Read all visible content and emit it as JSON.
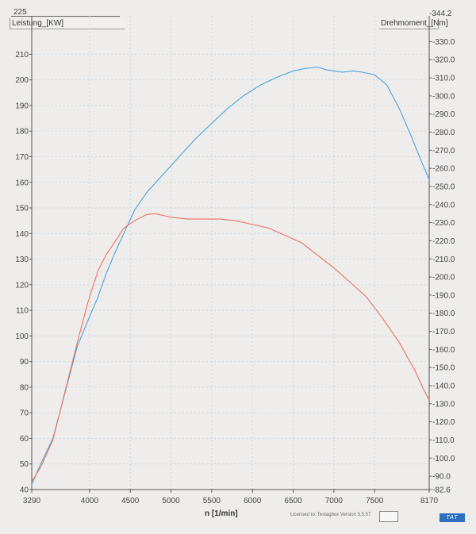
{
  "chart_data": {
    "type": "line",
    "xlabel": "n  [1/min]",
    "y_left_label": "Leistung_[KW]",
    "y_right_label": "Drehmoment_[Nm]",
    "x_range": [
      3290,
      8170
    ],
    "y_left_range": [
      40,
      225
    ],
    "y_right_range": [
      82.6,
      344.2
    ],
    "x_ticks": [
      "3290",
      "4000",
      "4500",
      "5000",
      "5500",
      "6000",
      "6500",
      "7000",
      "7500",
      "8170"
    ],
    "y_left_ticks": [
      "40",
      "50",
      "60",
      "70",
      "80",
      "90",
      "100",
      "110",
      "120",
      "130",
      "140",
      "150",
      "160",
      "170",
      "180",
      "190",
      "200",
      "210",
      "225"
    ],
    "y_right_ticks": [
      "-82.6",
      "-90.0",
      "-100.0",
      "-110.0",
      "-120.0",
      "-130.0",
      "-140.0",
      "-150.0",
      "-160.0",
      "-170.0",
      "-180.0",
      "-190.0",
      "-200.0",
      "-210.0",
      "-220.0",
      "-230.0",
      "-240.0",
      "-250.0",
      "-260.0",
      "-270.0",
      "-280.0",
      "-290.0",
      "-300.0",
      "-310.0",
      "-320.0",
      "-330.0",
      "-344.2"
    ],
    "series": [
      {
        "name": "Leistung_[KW]",
        "axis": "left",
        "color": "#4aa3df",
        "points": [
          [
            3290,
            42
          ],
          [
            3400,
            50
          ],
          [
            3550,
            60
          ],
          [
            3700,
            78
          ],
          [
            3850,
            96
          ],
          [
            3980,
            106
          ],
          [
            4100,
            115
          ],
          [
            4200,
            124
          ],
          [
            4320,
            133
          ],
          [
            4420,
            140
          ],
          [
            4550,
            149
          ],
          [
            4700,
            156
          ],
          [
            4900,
            163
          ],
          [
            5100,
            170
          ],
          [
            5300,
            177
          ],
          [
            5500,
            183
          ],
          [
            5700,
            189
          ],
          [
            5900,
            194
          ],
          [
            6100,
            198
          ],
          [
            6300,
            201
          ],
          [
            6500,
            203.5
          ],
          [
            6650,
            204.5
          ],
          [
            6800,
            205
          ],
          [
            6900,
            204
          ],
          [
            7000,
            203.5
          ],
          [
            7100,
            203
          ],
          [
            7250,
            203.5
          ],
          [
            7350,
            203
          ],
          [
            7500,
            202
          ],
          [
            7650,
            198
          ],
          [
            7800,
            189
          ],
          [
            7950,
            178
          ],
          [
            8050,
            170
          ],
          [
            8170,
            161
          ]
        ]
      },
      {
        "name": "Drehmoment_[Nm]",
        "axis": "right",
        "color": "#f07060",
        "points": [
          [
            3290,
            87
          ],
          [
            3400,
            95
          ],
          [
            3550,
            110
          ],
          [
            3700,
            137
          ],
          [
            3850,
            164
          ],
          [
            3980,
            186
          ],
          [
            4100,
            203
          ],
          [
            4200,
            212
          ],
          [
            4320,
            220
          ],
          [
            4420,
            227
          ],
          [
            4550,
            231
          ],
          [
            4700,
            234.5
          ],
          [
            4800,
            235
          ],
          [
            4900,
            234
          ],
          [
            5000,
            233
          ],
          [
            5200,
            232
          ],
          [
            5400,
            232
          ],
          [
            5600,
            232
          ],
          [
            5800,
            231
          ],
          [
            6000,
            229
          ],
          [
            6200,
            227
          ],
          [
            6400,
            223
          ],
          [
            6600,
            219
          ],
          [
            6800,
            212
          ],
          [
            7000,
            205
          ],
          [
            7200,
            197
          ],
          [
            7400,
            189
          ],
          [
            7600,
            177
          ],
          [
            7800,
            164
          ],
          [
            8000,
            148
          ],
          [
            8100,
            138
          ],
          [
            8170,
            132
          ]
        ]
      }
    ],
    "grid": true,
    "legend": "none"
  },
  "chart": {
    "left_top_value": "225",
    "right_top_value": "-344.2",
    "x_axis_label": "n  [1/min]",
    "y_left_label": "Leistung_[KW]",
    "y_right_label": "Drehmoment_[Nm]",
    "license_text": "Licensed to: Testagbox   Version 5.5.57",
    "badge": "TAT"
  }
}
